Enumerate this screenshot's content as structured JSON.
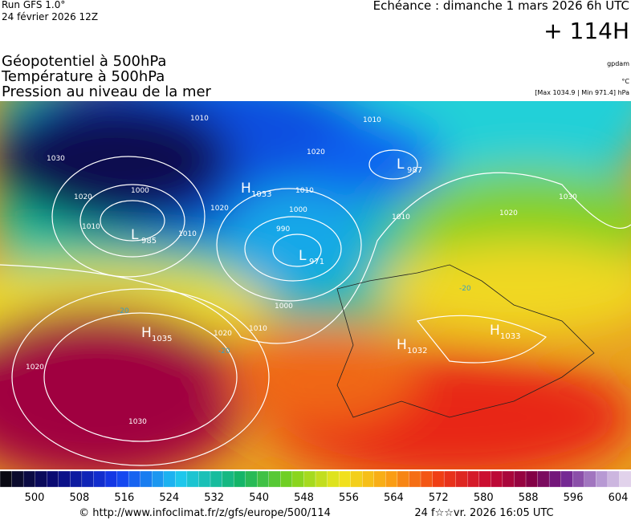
{
  "header": {
    "run": "Run GFS 1.0°",
    "date": "24 février 2026 12Z",
    "echeance": "Echéance : dimanche 1 mars 2026 6h UTC",
    "lead": "+ 114H"
  },
  "titles": [
    "Géopotentiel à 500hPa",
    "Température à 500hPa",
    "Pression au niveau de la mer"
  ],
  "units": {
    "geopotential": "gpdam",
    "temperature": "°C",
    "pressure": "[Max 1034.9 | Min 971.4] hPa"
  },
  "map": {
    "centers": [
      {
        "letter": "H",
        "value": "1033"
      },
      {
        "letter": "L",
        "value": "985"
      },
      {
        "letter": "L",
        "value": "971"
      },
      {
        "letter": "L",
        "value": "987"
      },
      {
        "letter": "H",
        "value": "1035"
      },
      {
        "letter": "H",
        "value": "1032"
      },
      {
        "letter": "H",
        "value": "1033"
      }
    ],
    "isobar_labels": [
      "1010",
      "1030",
      "1020",
      "1000",
      "1010",
      "1010",
      "1020",
      "1020",
      "1010",
      "1000",
      "990",
      "1000",
      "1010",
      "1020",
      "1020",
      "1030",
      "1010",
      "1010",
      "1020",
      "1030"
    ],
    "temperature_labels": [
      "-20",
      "-20",
      "-20"
    ]
  },
  "colorbar": {
    "labels": [
      "500",
      "508",
      "516",
      "524",
      "532",
      "540",
      "548",
      "556",
      "564",
      "572",
      "580",
      "588",
      "596",
      "604"
    ]
  },
  "footer": {
    "url": "© http://www.infoclimat.fr/z/gfs/europe/500/114",
    "timestamp": "24 f☆☆vr. 2026 16:05 UTC"
  }
}
